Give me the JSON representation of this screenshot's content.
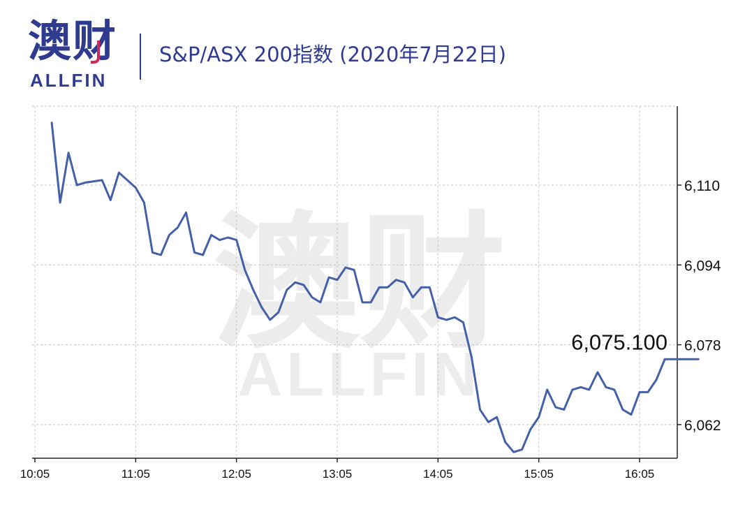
{
  "brand": {
    "logo_cn": "澳财",
    "logo_en": "ALLFIN",
    "color": "#2f3b8f",
    "accent": "#d0285c"
  },
  "title": "S&P/ASX 200指数 (2020年7月22日)",
  "watermark": {
    "cn": "澳财",
    "en": "ALLFIN"
  },
  "chart_data": {
    "type": "line",
    "title": "S&P/ASX 200指数 (2020年7月22日)",
    "xlabel": "",
    "ylabel": "",
    "x_ticks": [
      "10:05",
      "11:05",
      "12:05",
      "13:05",
      "14:05",
      "15:05",
      "16:05"
    ],
    "y_ticks": [
      6062,
      6078,
      6094,
      6110
    ],
    "y_tick_labels": [
      "6,062",
      "6,078",
      "6,094",
      "6,110"
    ],
    "ylim": [
      6055.5,
      6126
    ],
    "grid": true,
    "axis_side": "right",
    "line_color": "#4360a8",
    "last_value_label": "6,075.100",
    "series": [
      {
        "x": [
          "10:15",
          "10:20",
          "10:25",
          "10:30",
          "10:35",
          "10:45",
          "10:50",
          "10:55",
          "11:05",
          "11:10",
          "11:15",
          "11:20",
          "11:25",
          "11:30",
          "11:35",
          "11:40",
          "11:45",
          "11:50",
          "11:55",
          "12:00",
          "12:05",
          "12:10",
          "12:15",
          "12:20",
          "12:25",
          "12:30",
          "12:35",
          "12:40",
          "12:45",
          "12:50",
          "12:55",
          "13:00",
          "13:05",
          "13:10",
          "13:15",
          "13:20",
          "13:25",
          "13:30",
          "13:35",
          "13:40",
          "13:45",
          "13:50",
          "13:55",
          "14:00",
          "14:05",
          "14:10",
          "14:15",
          "14:20",
          "14:25",
          "14:30",
          "14:35",
          "14:40",
          "14:45",
          "14:50",
          "14:55",
          "15:00",
          "15:05",
          "15:10",
          "15:15",
          "15:20",
          "15:25",
          "15:30",
          "15:35",
          "15:40",
          "15:45",
          "15:50",
          "15:55",
          "16:00",
          "16:05",
          "16:10",
          "16:15",
          "16:20",
          "16:25",
          "16:30",
          "16:35",
          "16:40"
        ],
        "values": [
          6122.5,
          6106.5,
          6116.5,
          6110.0,
          6110.5,
          6111.0,
          6107.0,
          6112.5,
          6109.5,
          6106.5,
          6096.5,
          6096.0,
          6100.0,
          6101.5,
          6104.5,
          6096.5,
          6096.0,
          6100.0,
          6099.0,
          6099.5,
          6099.0,
          6093.0,
          6089.0,
          6085.5,
          6083.0,
          6084.5,
          6089.0,
          6090.5,
          6090.0,
          6087.5,
          6086.5,
          6091.5,
          6091.0,
          6093.5,
          6093.0,
          6086.5,
          6086.5,
          6089.5,
          6089.5,
          6091.0,
          6090.5,
          6087.5,
          6089.5,
          6089.5,
          6083.5,
          6083.0,
          6083.5,
          6082.5,
          6075.5,
          6065.0,
          6062.5,
          6063.5,
          6058.5,
          6056.5,
          6057.0,
          6061.0,
          6063.5,
          6069.0,
          6065.5,
          6065.0,
          6069.0,
          6069.5,
          6069.0,
          6072.5,
          6069.5,
          6069.0,
          6065.0,
          6064.0,
          6068.5,
          6068.5,
          6071.0,
          6075.1,
          6075.1,
          6075.1,
          6075.1,
          6075.1
        ]
      }
    ]
  }
}
